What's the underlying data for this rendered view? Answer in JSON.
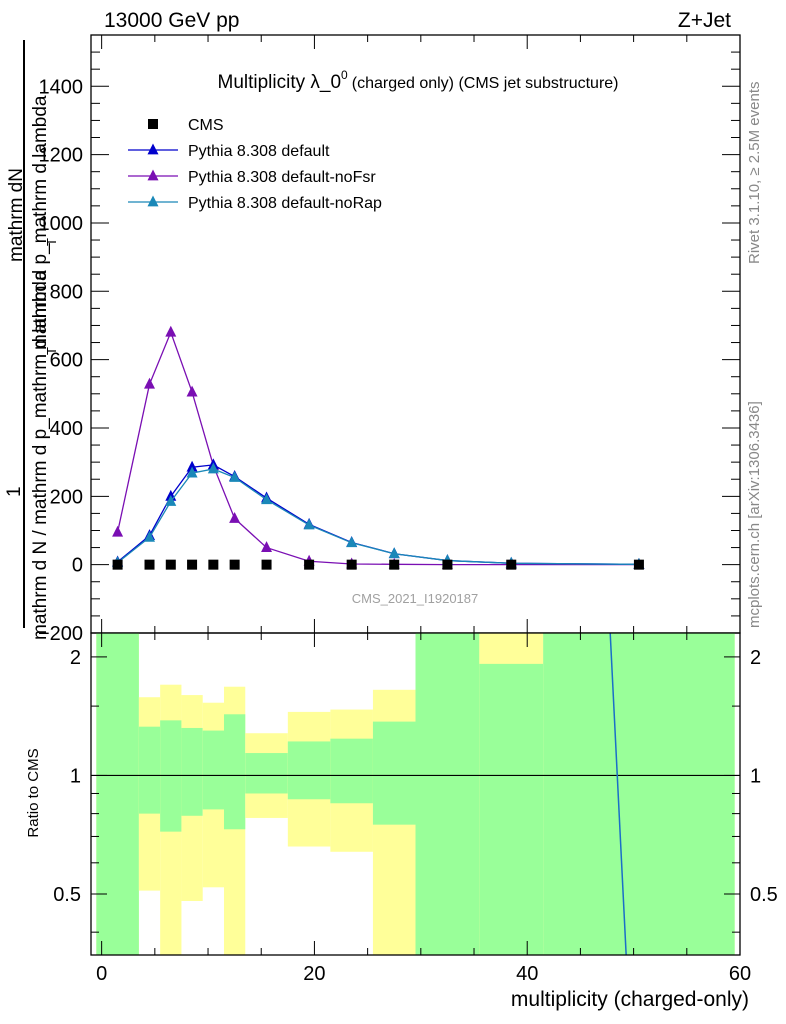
{
  "header": {
    "left": "13000 GeV pp",
    "right": "Z+Jet"
  },
  "side_labels": {
    "rivet": "Rivet 3.1.10, ≥ 2.5M events",
    "mcplots": "mcplots.cern.ch [arXiv:1306.3436]"
  },
  "chart_data": {
    "type": "line",
    "title_main": "Multiplicity λ_0",
    "title_sup": "0",
    "title_rest": "(charged only) (CMS jet substructure)",
    "watermark": "CMS_2021_I1920187",
    "ylabel_parts": [
      "1",
      "mathrm d N / mathrm d p_{T} mathrm d lambda",
      "mathrm d N",
      "mathrm d p_{T} mathrm d lambda"
    ],
    "ylabel_line1": "mathrm dN",
    "ylabel_line2": "mathrm d p_mathrm d lambda",
    "ylabel_sub": "T",
    "ylabel_line3": "1",
    "ylabel_line4": "mathrm d N / mathrm d p_mathrm d lambda",
    "ylabel_line4_sub": "T",
    "xlabel": "multiplicity (charged-only)",
    "ratio_ylabel": "Ratio to CMS",
    "xlim": [
      -1,
      60
    ],
    "ylim": [
      -200,
      1550
    ],
    "ratio_ylim": [
      0.35,
      2.3
    ],
    "ratio_log": true,
    "x_ticks": [
      "0",
      "20",
      "40",
      "60"
    ],
    "y_ticks": [
      "−200",
      "0",
      "200",
      "400",
      "600",
      "800",
      "1000",
      "1200",
      "1400"
    ],
    "ratio_ticks": [
      "0.5",
      "1",
      "2"
    ],
    "legend": [
      {
        "name": "CMS",
        "color": "#000000",
        "marker": "square"
      },
      {
        "name": "Pythia 8.308 default",
        "color": "#0000cc",
        "marker": "triangle"
      },
      {
        "name": "Pythia 8.308 default-noFsr",
        "color": "#7a0fb3",
        "marker": "triangle"
      },
      {
        "name": "Pythia 8.308 default-noRap",
        "color": "#1a88b8",
        "marker": "triangle"
      }
    ],
    "x": [
      1.5,
      4.5,
      6.5,
      8.5,
      10.5,
      12.5,
      15.5,
      19.5,
      23.5,
      27.5,
      32.5,
      38.5,
      50.5
    ],
    "series": [
      {
        "name": "CMS",
        "values": [
          0,
          0,
          0,
          0,
          0,
          0,
          0,
          0,
          0,
          0,
          0,
          0,
          0
        ]
      },
      {
        "name": "Pythia 8.308 default",
        "values": [
          8,
          85,
          200,
          285,
          292,
          258,
          195,
          118,
          65,
          32,
          12,
          4,
          1
        ]
      },
      {
        "name": "Pythia 8.308 default-noFsr",
        "values": [
          95,
          528,
          680,
          505,
          290,
          135,
          50,
          10,
          2,
          1,
          0,
          0,
          0
        ]
      },
      {
        "name": "Pythia 8.308 default-noRap",
        "values": [
          6,
          80,
          185,
          268,
          280,
          255,
          190,
          116,
          64,
          32,
          12,
          4,
          1
        ]
      }
    ],
    "ratio_bands": [
      {
        "lo": -0.5,
        "hi": 3.5,
        "y_in": [
          0.35,
          2.3
        ],
        "g_in": [
          0.35,
          2.3
        ]
      },
      {
        "lo": 3.5,
        "hi": 5.5,
        "y_in": [
          0.51,
          1.58
        ],
        "g_in": [
          0.8,
          1.33
        ]
      },
      {
        "lo": 5.5,
        "hi": 7.5,
        "y_in": [
          0.35,
          1.7
        ],
        "g_in": [
          0.72,
          1.38
        ]
      },
      {
        "lo": 7.5,
        "hi": 9.5,
        "y_in": [
          0.48,
          1.6
        ],
        "g_in": [
          0.79,
          1.32
        ]
      },
      {
        "lo": 9.5,
        "hi": 11.5,
        "y_in": [
          0.52,
          1.53
        ],
        "g_in": [
          0.82,
          1.3
        ]
      },
      {
        "lo": 11.5,
        "hi": 13.5,
        "y_in": [
          0.35,
          1.68
        ],
        "g_in": [
          0.73,
          1.43
        ]
      },
      {
        "lo": 13.5,
        "hi": 17.5,
        "y_in": [
          0.78,
          1.28
        ],
        "g_in": [
          0.9,
          1.14
        ]
      },
      {
        "lo": 17.5,
        "hi": 21.5,
        "y_in": [
          0.66,
          1.45
        ],
        "g_in": [
          0.87,
          1.22
        ]
      },
      {
        "lo": 21.5,
        "hi": 25.5,
        "y_in": [
          0.64,
          1.47
        ],
        "g_in": [
          0.85,
          1.24
        ]
      },
      {
        "lo": 25.5,
        "hi": 29.5,
        "y_in": [
          0.35,
          1.65
        ],
        "g_in": [
          0.75,
          1.37
        ]
      },
      {
        "lo": 29.5,
        "hi": 35.5,
        "y_in": [
          0.35,
          2.3
        ],
        "g_in": [
          0.35,
          2.3
        ]
      },
      {
        "lo": 35.5,
        "hi": 41.5,
        "y_in": [
          0.35,
          2.3
        ],
        "g_in": [
          0.35,
          1.92
        ]
      },
      {
        "lo": 41.5,
        "hi": 59.5,
        "y_in": [
          0.35,
          2.3
        ],
        "g_in": [
          0.35,
          2.3
        ]
      }
    ],
    "ratio_line": {
      "name": "Pythia 8.308 default",
      "x": [
        47.8,
        49.3
      ],
      "y": [
        2.3,
        0.35
      ]
    },
    "colors": {
      "band_green": "#99ff99",
      "band_yellow": "#ffff99"
    }
  }
}
